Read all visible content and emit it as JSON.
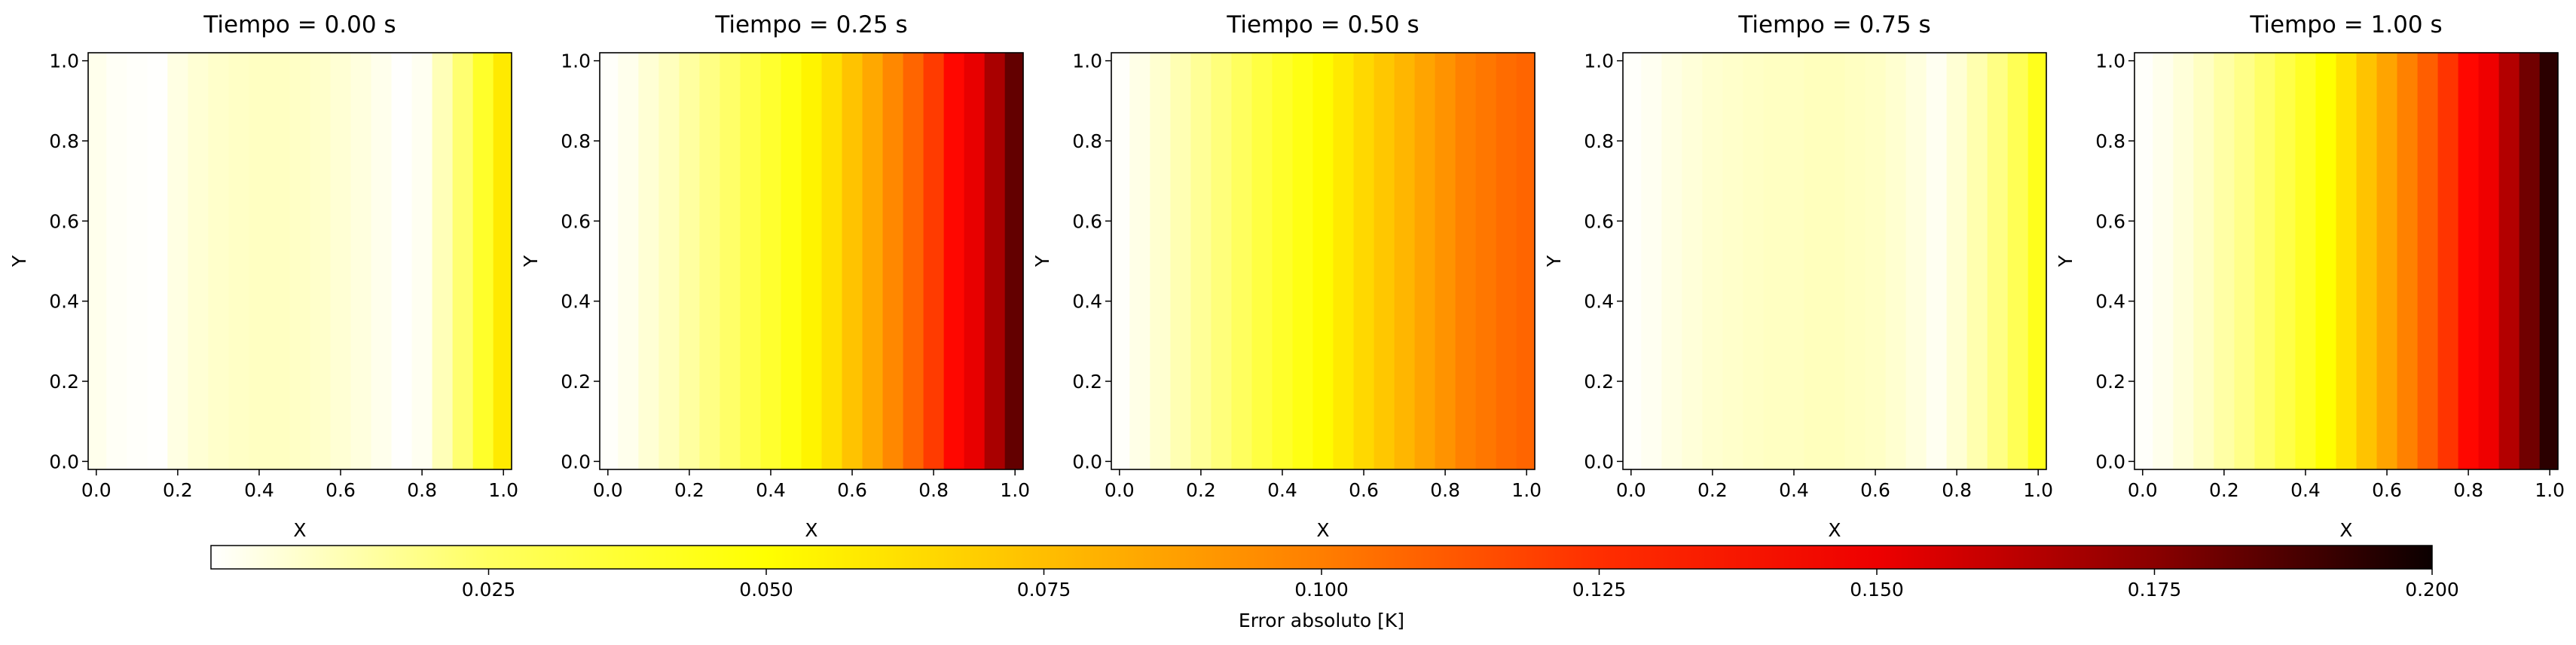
{
  "chart_data": [
    {
      "type": "heatmap",
      "title": "Tiempo = 0.00 s",
      "xlabel": "X",
      "ylabel": "Y",
      "xlim": [
        -0.02,
        1.02
      ],
      "ylim": [
        -0.02,
        1.02
      ],
      "xticks": [
        "0.0",
        "0.2",
        "0.4",
        "0.6",
        "0.8",
        "1.0"
      ],
      "yticks": [
        "0.0",
        "0.2",
        "0.4",
        "0.6",
        "0.8",
        "1.0"
      ],
      "x": [
        0.0,
        0.05,
        0.1,
        0.15,
        0.2,
        0.25,
        0.3,
        0.35,
        0.4,
        0.45,
        0.5,
        0.55,
        0.6,
        0.65,
        0.7,
        0.75,
        0.8,
        0.85,
        0.9,
        0.95,
        1.0
      ],
      "error_by_x": [
        0.004,
        0.002,
        0.001,
        0.0005,
        0.006,
        0.009,
        0.011,
        0.012,
        0.013,
        0.013,
        0.012,
        0.011,
        0.009,
        0.007,
        0.004,
        0.0005,
        0.003,
        0.015,
        0.03,
        0.045,
        0.06
      ]
    },
    {
      "type": "heatmap",
      "title": "Tiempo = 0.25 s",
      "xlabel": "X",
      "ylabel": "Y",
      "xlim": [
        -0.02,
        1.02
      ],
      "ylim": [
        -0.02,
        1.02
      ],
      "xticks": [
        "0.0",
        "0.2",
        "0.4",
        "0.6",
        "0.8",
        "1.0"
      ],
      "yticks": [
        "0.0",
        "0.2",
        "0.4",
        "0.6",
        "0.8",
        "1.0"
      ],
      "x": [
        0.0,
        0.05,
        0.1,
        0.15,
        0.2,
        0.25,
        0.3,
        0.35,
        0.4,
        0.45,
        0.5,
        0.55,
        0.6,
        0.65,
        0.7,
        0.75,
        0.8,
        0.85,
        0.9,
        0.95,
        1.0
      ],
      "error_by_x": [
        0.001,
        0.004,
        0.009,
        0.014,
        0.02,
        0.026,
        0.032,
        0.038,
        0.044,
        0.05,
        0.057,
        0.063,
        0.071,
        0.079,
        0.088,
        0.098,
        0.11,
        0.125,
        0.142,
        0.16,
        0.18
      ]
    },
    {
      "type": "heatmap",
      "title": "Tiempo = 0.50 s",
      "xlabel": "X",
      "ylabel": "Y",
      "xlim": [
        -0.02,
        1.02
      ],
      "ylim": [
        -0.02,
        1.02
      ],
      "xticks": [
        "0.0",
        "0.2",
        "0.4",
        "0.6",
        "0.8",
        "1.0"
      ],
      "yticks": [
        "0.0",
        "0.2",
        "0.4",
        "0.6",
        "0.8",
        "1.0"
      ],
      "x": [
        0.0,
        0.05,
        0.1,
        0.15,
        0.2,
        0.25,
        0.3,
        0.35,
        0.4,
        0.45,
        0.5,
        0.55,
        0.6,
        0.65,
        0.7,
        0.75,
        0.8,
        0.85,
        0.9,
        0.95,
        1.0
      ],
      "error_by_x": [
        0.001,
        0.005,
        0.01,
        0.016,
        0.022,
        0.028,
        0.034,
        0.04,
        0.045,
        0.05,
        0.055,
        0.06,
        0.065,
        0.07,
        0.075,
        0.08,
        0.085,
        0.09,
        0.093,
        0.096,
        0.098
      ]
    },
    {
      "type": "heatmap",
      "title": "Tiempo = 0.75 s",
      "xlabel": "X",
      "ylabel": "Y",
      "xlim": [
        -0.02,
        1.02
      ],
      "ylim": [
        -0.02,
        1.02
      ],
      "xticks": [
        "0.0",
        "0.2",
        "0.4",
        "0.6",
        "0.8",
        "1.0"
      ],
      "yticks": [
        "0.0",
        "0.2",
        "0.4",
        "0.6",
        "0.8",
        "1.0"
      ],
      "x": [
        0.0,
        0.05,
        0.1,
        0.15,
        0.2,
        0.25,
        0.3,
        0.35,
        0.4,
        0.45,
        0.5,
        0.55,
        0.6,
        0.65,
        0.7,
        0.75,
        0.8,
        0.85,
        0.9,
        0.95,
        1.0
      ],
      "error_by_x": [
        0.001,
        0.003,
        0.006,
        0.008,
        0.01,
        0.011,
        0.012,
        0.013,
        0.013,
        0.014,
        0.014,
        0.013,
        0.012,
        0.01,
        0.007,
        0.003,
        0.009,
        0.017,
        0.026,
        0.036,
        0.048
      ]
    },
    {
      "type": "heatmap",
      "title": "Tiempo = 1.00 s",
      "xlabel": "X",
      "ylabel": "Y",
      "xlim": [
        -0.02,
        1.02
      ],
      "ylim": [
        -0.02,
        1.02
      ],
      "xticks": [
        "0.0",
        "0.2",
        "0.4",
        "0.6",
        "0.8",
        "1.0"
      ],
      "yticks": [
        "0.0",
        "0.2",
        "0.4",
        "0.6",
        "0.8",
        "1.0"
      ],
      "x": [
        0.0,
        0.05,
        0.1,
        0.15,
        0.2,
        0.25,
        0.3,
        0.35,
        0.4,
        0.45,
        0.5,
        0.55,
        0.6,
        0.65,
        0.7,
        0.75,
        0.8,
        0.85,
        0.9,
        0.95,
        1.0
      ],
      "error_by_x": [
        0.001,
        0.004,
        0.008,
        0.013,
        0.019,
        0.025,
        0.032,
        0.039,
        0.046,
        0.054,
        0.062,
        0.071,
        0.08,
        0.09,
        0.1,
        0.112,
        0.125,
        0.14,
        0.157,
        0.176,
        0.196
      ]
    }
  ],
  "colorbar": {
    "label": "Error absoluto [K]",
    "colormap": "hot_r",
    "vmin": 0.0,
    "vmax": 0.2,
    "ticks": [
      0.025,
      0.05,
      0.075,
      0.1,
      0.125,
      0.15,
      0.175,
      0.2
    ],
    "tick_labels": [
      "0.025",
      "0.050",
      "0.075",
      "0.100",
      "0.125",
      "0.150",
      "0.175",
      "0.200"
    ]
  }
}
